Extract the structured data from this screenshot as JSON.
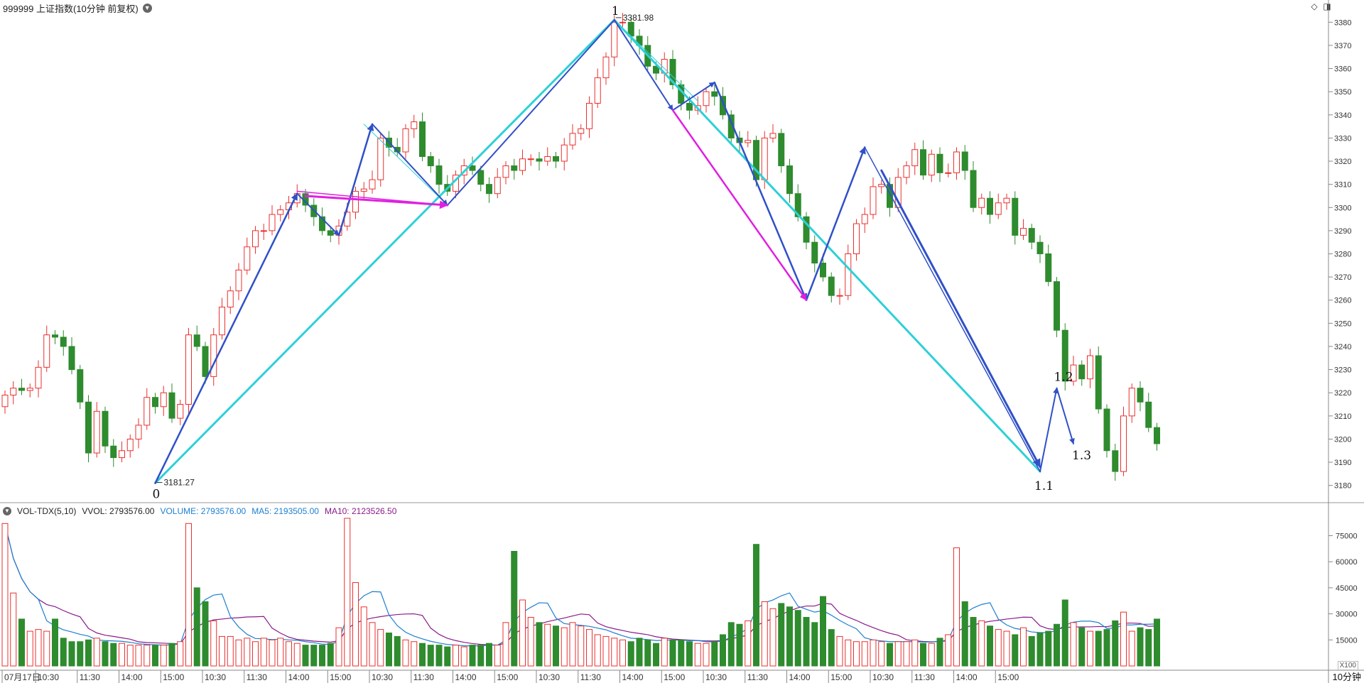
{
  "header": {
    "title": "999999 上证指数(10分钟 前复权)"
  },
  "volume_header": {
    "name": "VOL-TDX(5,10)",
    "vvol": "VVOL: 2793576.00",
    "volume": "VOLUME: 2793576.00",
    "ma5": "MA5: 2193505.00",
    "ma10": "MA10: 2123526.50"
  },
  "period": "10分钟",
  "volume_unit": "X100",
  "colors": {
    "up": "#e8312f",
    "down": "#2e8b2e",
    "wave_primary": "#3050c8",
    "wave_cyan": "#2ed0d8",
    "wave_magenta": "#e020e0",
    "ma5": "#1e7fd0",
    "ma10": "#8a1a8a",
    "axis": "#888888"
  },
  "chart_data": {
    "type": "candlestick",
    "price_axis": {
      "min": 3175,
      "max": 3385,
      "ticks": [
        3180,
        3190,
        3200,
        3210,
        3220,
        3230,
        3240,
        3250,
        3260,
        3270,
        3280,
        3290,
        3300,
        3310,
        3320,
        3330,
        3340,
        3350,
        3360,
        3370,
        3380
      ]
    },
    "volume_axis": {
      "min": 0,
      "max": 85000,
      "ticks": [
        15000,
        30000,
        45000,
        60000,
        75000
      ]
    },
    "x_labels": [
      {
        "i": 0,
        "t": "07月17日"
      },
      {
        "i": 4,
        "t": "10:30"
      },
      {
        "i": 9,
        "t": "11:30"
      },
      {
        "i": 14,
        "t": "14:00"
      },
      {
        "i": 19,
        "t": "15:00"
      },
      {
        "i": 24,
        "t": "10:30"
      },
      {
        "i": 29,
        "t": "11:30"
      },
      {
        "i": 34,
        "t": "14:00"
      },
      {
        "i": 39,
        "t": "15:00"
      },
      {
        "i": 44,
        "t": "10:30"
      },
      {
        "i": 49,
        "t": "11:30"
      },
      {
        "i": 54,
        "t": "14:00"
      },
      {
        "i": 59,
        "t": "15:00"
      },
      {
        "i": 64,
        "t": "10:30"
      },
      {
        "i": 69,
        "t": "11:30"
      },
      {
        "i": 74,
        "t": "14:00"
      },
      {
        "i": 79,
        "t": "15:00"
      },
      {
        "i": 84,
        "t": "10:30"
      },
      {
        "i": 89,
        "t": "11:30"
      },
      {
        "i": 94,
        "t": "14:00"
      },
      {
        "i": 99,
        "t": "15:00"
      },
      {
        "i": 104,
        "t": "10:30"
      },
      {
        "i": 109,
        "t": "11:30"
      },
      {
        "i": 114,
        "t": "14:00"
      },
      {
        "i": 119,
        "t": "15:00"
      }
    ],
    "closes": [
      3219,
      3222,
      3221,
      3222,
      3231,
      3245,
      3244,
      3240,
      3230,
      3216,
      3194,
      3212,
      3197,
      3192,
      3195,
      3200,
      3206,
      3218,
      3214,
      3220,
      3209,
      3215,
      3245,
      3240,
      3227,
      3245,
      3257,
      3264,
      3273,
      3283,
      3290,
      3290,
      3297,
      3299,
      3302,
      3306,
      3301,
      3296,
      3290,
      3288,
      3292,
      3298,
      3307,
      3308,
      3312,
      3330,
      3326,
      3324,
      3334,
      3337,
      3322,
      3318,
      3310,
      3307,
      3314,
      3318,
      3316,
      3310,
      3306,
      3313,
      3318,
      3316,
      3321,
      3321,
      3320,
      3322,
      3320,
      3327,
      3332,
      3334,
      3345,
      3356,
      3365,
      3380,
      3380,
      3374,
      3370,
      3361,
      3358,
      3364,
      3353,
      3345,
      3342,
      3344,
      3350,
      3348,
      3340,
      3330,
      3328,
      3329,
      3312,
      3330,
      3332,
      3318,
      3306,
      3296,
      3285,
      3276,
      3270,
      3262,
      3262,
      3280,
      3293,
      3297,
      3309,
      3310,
      3300,
      3313,
      3318,
      3325,
      3314,
      3323,
      3315,
      3315,
      3324,
      3316,
      3300,
      3304,
      3297,
      3302,
      3304,
      3288,
      3291,
      3285,
      3280,
      3268,
      3247,
      3225,
      3232,
      3226,
      3236,
      3213,
      3195,
      3186,
      3210,
      3222,
      3216,
      3205,
      3198
    ],
    "volumes": [
      82000,
      42000,
      27000,
      20000,
      21000,
      20000,
      27000,
      16000,
      14000,
      14000,
      15000,
      16000,
      14000,
      13000,
      13000,
      12000,
      12000,
      12000,
      12000,
      12000,
      13000,
      14000,
      82000,
      45000,
      37000,
      26000,
      17000,
      17000,
      15000,
      16000,
      14000,
      16000,
      15000,
      16000,
      14000,
      13000,
      12000,
      12000,
      12000,
      13000,
      22000,
      85000,
      48000,
      34000,
      25000,
      21000,
      19000,
      17000,
      15000,
      14000,
      13000,
      12000,
      12000,
      11000,
      12000,
      11000,
      12000,
      12000,
      13000,
      12000,
      25000,
      66000,
      38000,
      28000,
      25000,
      24000,
      23000,
      22000,
      25000,
      23000,
      21000,
      18000,
      17000,
      16000,
      15000,
      14000,
      16000,
      15000,
      13000,
      16000,
      15000,
      15000,
      14000,
      13000,
      13000,
      14000,
      18000,
      25000,
      24000,
      26000,
      70000,
      37000,
      33000,
      36000,
      34000,
      32000,
      28000,
      25000,
      40000,
      21000,
      17000,
      15000,
      14000,
      14000,
      15000,
      14000,
      13000,
      14000,
      14000,
      15000,
      13000,
      13000,
      16000,
      18000,
      68000,
      37000,
      28000,
      26000,
      23000,
      21000,
      20000,
      18000,
      22000,
      17000,
      19000,
      20000,
      24000,
      38000,
      25000,
      22000,
      20000,
      20000,
      21000,
      26000,
      31000,
      20000,
      22000,
      21000,
      27000
    ],
    "wave_points": [
      {
        "label": "0",
        "i": 18,
        "v": 3181.27
      },
      {
        "label": "1",
        "i": 73,
        "v": 3381.98
      },
      {
        "label": "1.1",
        "i": 124,
        "v": 3186
      },
      {
        "label": "1.2",
        "i": 126,
        "v": 3222
      },
      {
        "label": "1.3",
        "i": 128,
        "v": 3198
      }
    ],
    "price_labels": [
      {
        "i": 18,
        "v": 3181.27,
        "text": "3181.27"
      },
      {
        "i": 73,
        "v": 3381.98,
        "text": "3381.98"
      }
    ],
    "lines": [
      {
        "c": "cyan",
        "w": 3,
        "a": [
          18,
          3181
        ],
        "b": [
          73,
          3381
        ]
      },
      {
        "c": "cyan",
        "w": 3,
        "a": [
          73,
          3381
        ],
        "b": [
          124,
          3186
        ]
      },
      {
        "c": "cyan",
        "w": 1,
        "a": [
          43,
          3336
        ],
        "b": [
          53,
          3301
        ]
      },
      {
        "c": "cyan",
        "w": 1,
        "a": [
          73,
          3381
        ],
        "b": [
          83,
          3346
        ]
      },
      {
        "c": "primary",
        "w": 2.5,
        "a": [
          18,
          3181
        ],
        "b": [
          35,
          3306
        ],
        "arrow": true
      },
      {
        "c": "primary",
        "w": 2,
        "a": [
          35,
          3306
        ],
        "b": [
          40,
          3288
        ],
        "arrow": true
      },
      {
        "c": "primary",
        "w": 2.5,
        "a": [
          40,
          3288
        ],
        "b": [
          44,
          3336
        ],
        "arrow": true
      },
      {
        "c": "primary",
        "w": 2,
        "a": [
          44,
          3336
        ],
        "b": [
          53,
          3301
        ],
        "arrow": true
      },
      {
        "c": "primary",
        "w": 2,
        "a": [
          53,
          3301
        ],
        "b": [
          73,
          3381
        ]
      },
      {
        "c": "primary",
        "w": 2,
        "a": [
          73,
          3381
        ],
        "b": [
          80,
          3342
        ],
        "arrow": true
      },
      {
        "c": "primary",
        "w": 2,
        "a": [
          80,
          3342
        ],
        "b": [
          85,
          3354
        ],
        "arrow": true
      },
      {
        "c": "primary",
        "w": 1,
        "a": [
          85,
          3354
        ],
        "b": [
          96,
          3260
        ]
      },
      {
        "c": "primary",
        "w": 2.5,
        "a": [
          85,
          3354
        ],
        "b": [
          96,
          3260
        ],
        "arrow": true
      },
      {
        "c": "primary",
        "w": 2.5,
        "a": [
          96,
          3260
        ],
        "b": [
          103,
          3326
        ],
        "arrow": true
      },
      {
        "c": "primary",
        "w": 1.5,
        "a": [
          103,
          3326
        ],
        "b": [
          124,
          3186
        ]
      },
      {
        "c": "primary",
        "w": 3,
        "a": [
          105,
          3316
        ],
        "b": [
          124,
          3188
        ],
        "arrow": true
      },
      {
        "c": "primary",
        "w": 2,
        "a": [
          124,
          3186
        ],
        "b": [
          126,
          3222
        ],
        "arrow": true
      },
      {
        "c": "primary",
        "w": 2,
        "a": [
          126,
          3222
        ],
        "b": [
          128,
          3198
        ],
        "arrow": true
      },
      {
        "c": "magenta",
        "w": 1.5,
        "a": [
          35,
          3307
        ],
        "b": [
          53,
          3301
        ]
      },
      {
        "c": "magenta",
        "w": 3,
        "a": [
          36,
          3305
        ],
        "b": [
          53,
          3301
        ],
        "arrow": true
      },
      {
        "c": "magenta",
        "w": 2.5,
        "a": [
          80,
          3342
        ],
        "b": [
          96,
          3260
        ],
        "arrow": true
      }
    ]
  }
}
